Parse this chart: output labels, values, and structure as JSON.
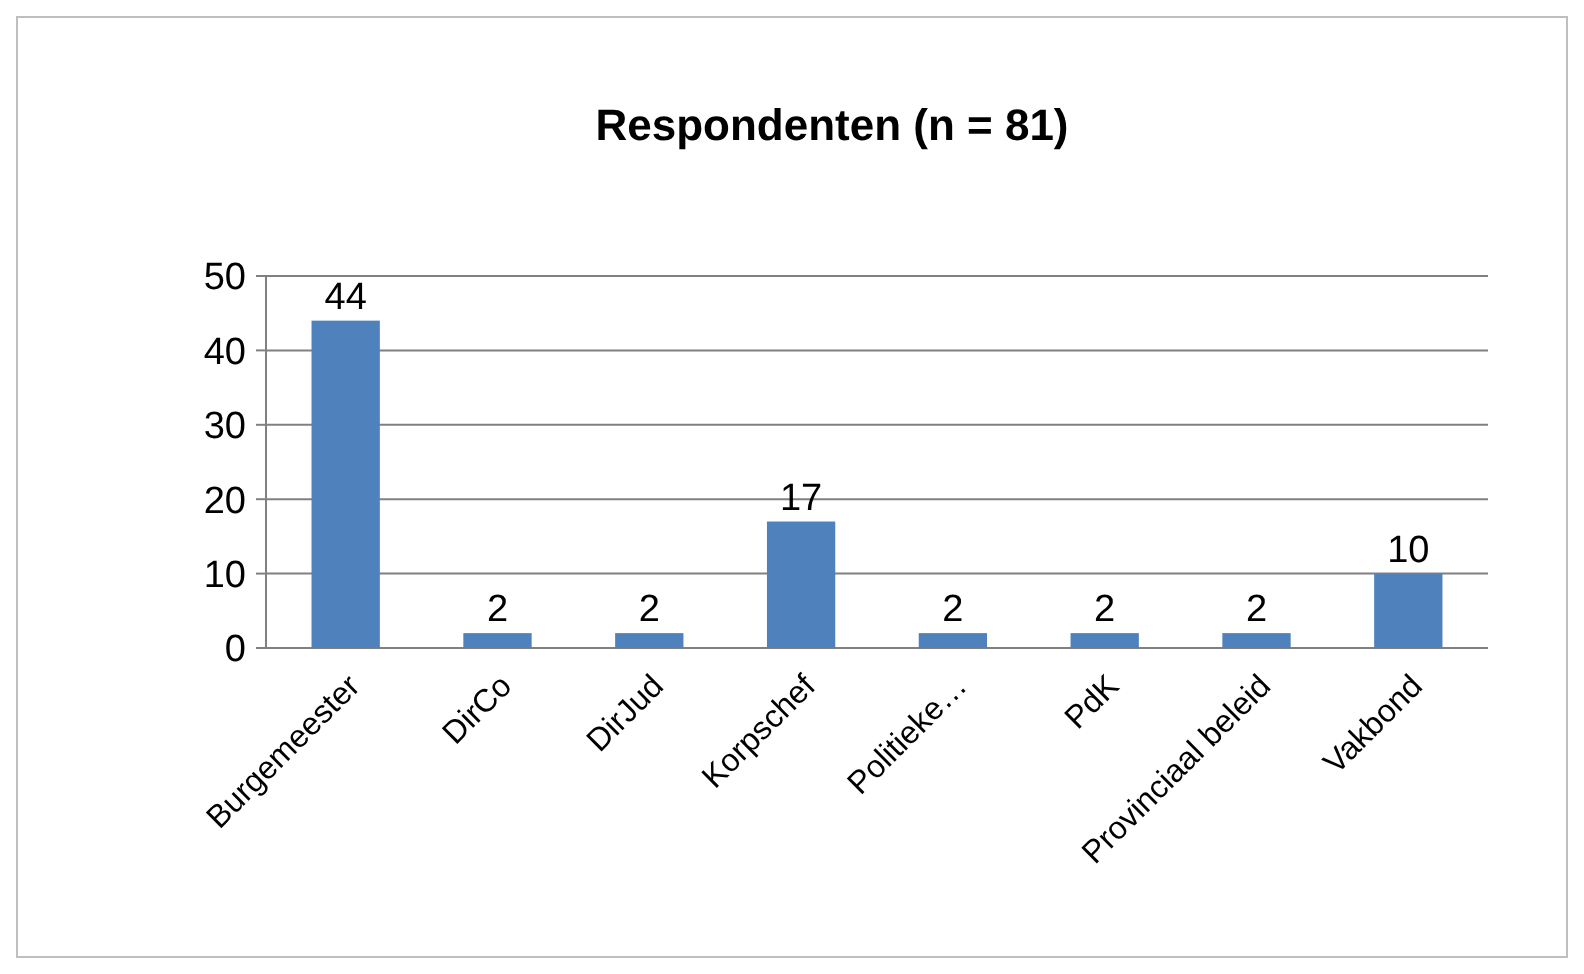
{
  "chart_data": {
    "type": "bar",
    "title": "Respondenten (n = 81)",
    "categories": [
      "Burgemeester",
      "DirCo",
      "DirJud",
      "Korpschef",
      "Politieke…",
      "PdK",
      "Provinciaal beleid",
      "Vakbond"
    ],
    "values": [
      44,
      2,
      2,
      17,
      2,
      2,
      2,
      10
    ],
    "color": "#4f81bd",
    "ylim": [
      0,
      50
    ],
    "yticks": [
      0,
      10,
      20,
      30,
      40,
      50
    ],
    "grid": "y",
    "data_labels": true
  }
}
